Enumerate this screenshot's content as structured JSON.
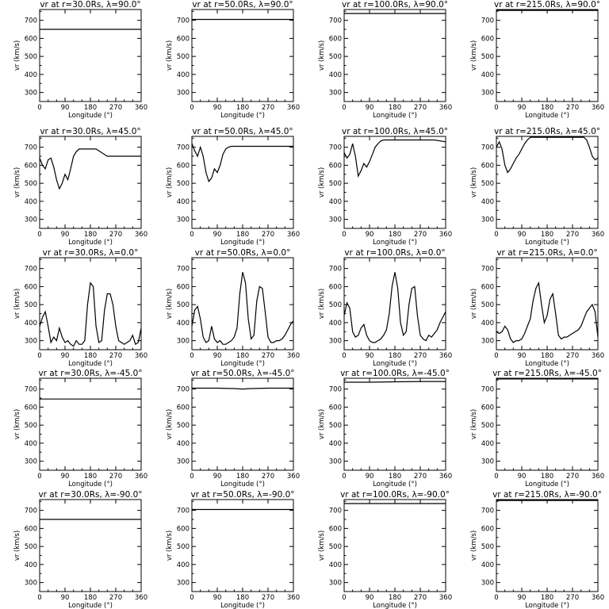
{
  "figure": {
    "xlabel": "Longitude (°)",
    "ylabel": "vr (km/s)",
    "x_ticks": [
      "0",
      "90",
      "180",
      "270",
      "360"
    ],
    "y_ticks": [
      "300",
      "400",
      "500",
      "600",
      "700"
    ]
  },
  "chart_data": [
    {
      "type": "line",
      "title": "vr at r=30.0Rs, λ=90.0°",
      "xlim": [
        0,
        360
      ],
      "ylim": [
        250,
        760
      ],
      "series": [
        {
          "x": [
            0,
            360
          ],
          "y": [
            650,
            650
          ]
        }
      ]
    },
    {
      "type": "line",
      "title": "vr at r=50.0Rs, λ=90.0°",
      "xlim": [
        0,
        360
      ],
      "ylim": [
        250,
        760
      ],
      "series": [
        {
          "x": [
            0,
            360
          ],
          "y": [
            705,
            705
          ]
        }
      ]
    },
    {
      "type": "line",
      "title": "vr at r=100.0Rs, λ=90.0°",
      "xlim": [
        0,
        360
      ],
      "ylim": [
        250,
        760
      ],
      "series": [
        {
          "x": [
            0,
            360
          ],
          "y": [
            738,
            738
          ]
        }
      ]
    },
    {
      "type": "line",
      "title": "vr at r=215.0Rs, λ=90.0°",
      "xlim": [
        0,
        360
      ],
      "ylim": [
        250,
        760
      ],
      "series": [
        {
          "x": [
            0,
            360
          ],
          "y": [
            755,
            755
          ]
        }
      ]
    },
    {
      "type": "line",
      "title": "vr at r=30.0Rs, λ=45.0°",
      "xlim": [
        0,
        360
      ],
      "ylim": [
        250,
        760
      ],
      "series": [
        {
          "x": [
            0,
            10,
            20,
            30,
            40,
            50,
            60,
            70,
            80,
            90,
            100,
            110,
            120,
            130,
            140,
            160,
            200,
            240,
            280,
            320,
            360
          ],
          "y": [
            640,
            600,
            580,
            630,
            640,
            590,
            520,
            470,
            500,
            550,
            520,
            580,
            650,
            675,
            690,
            690,
            690,
            650,
            650,
            650,
            650
          ]
        }
      ]
    },
    {
      "type": "line",
      "title": "vr at r=50.0Rs, λ=45.0°",
      "xlim": [
        0,
        360
      ],
      "ylim": [
        250,
        760
      ],
      "series": [
        {
          "x": [
            0,
            10,
            20,
            30,
            40,
            50,
            60,
            70,
            80,
            90,
            100,
            110,
            120,
            130,
            140,
            160,
            200,
            240,
            280,
            320,
            360
          ],
          "y": [
            720,
            680,
            650,
            700,
            650,
            560,
            510,
            530,
            580,
            560,
            600,
            660,
            690,
            700,
            705,
            705,
            705,
            705,
            705,
            705,
            705
          ]
        }
      ]
    },
    {
      "type": "line",
      "title": "vr at r=100.0Rs, λ=45.0°",
      "xlim": [
        0,
        360
      ],
      "ylim": [
        250,
        760
      ],
      "series": [
        {
          "x": [
            0,
            10,
            20,
            30,
            40,
            50,
            60,
            70,
            80,
            90,
            100,
            110,
            120,
            130,
            140,
            160,
            200,
            240,
            280,
            320,
            360
          ],
          "y": [
            670,
            640,
            660,
            720,
            650,
            540,
            570,
            610,
            590,
            620,
            660,
            700,
            720,
            735,
            740,
            740,
            740,
            740,
            740,
            740,
            730
          ]
        }
      ]
    },
    {
      "type": "line",
      "title": "vr at r=215.0Rs, λ=45.0°",
      "xlim": [
        0,
        360
      ],
      "ylim": [
        250,
        760
      ],
      "series": [
        {
          "x": [
            0,
            10,
            20,
            30,
            40,
            50,
            60,
            70,
            80,
            90,
            100,
            110,
            120,
            140,
            160,
            200,
            240,
            280,
            310,
            320,
            330,
            340,
            350,
            360
          ],
          "y": [
            700,
            730,
            690,
            600,
            560,
            580,
            610,
            640,
            660,
            690,
            720,
            740,
            755,
            755,
            755,
            755,
            755,
            755,
            755,
            740,
            700,
            650,
            630,
            640
          ]
        }
      ]
    },
    {
      "type": "line",
      "title": "vr at r=30.0Rs, λ=0.0°",
      "xlim": [
        0,
        360
      ],
      "ylim": [
        250,
        760
      ],
      "series": [
        {
          "x": [
            0,
            10,
            20,
            30,
            40,
            50,
            60,
            70,
            80,
            90,
            100,
            110,
            120,
            130,
            140,
            150,
            160,
            170,
            180,
            190,
            200,
            210,
            220,
            230,
            240,
            250,
            260,
            270,
            280,
            290,
            300,
            310,
            320,
            330,
            340,
            350,
            360
          ],
          "y": [
            380,
            430,
            460,
            380,
            290,
            320,
            300,
            370,
            320,
            290,
            300,
            280,
            270,
            300,
            280,
            280,
            300,
            500,
            620,
            600,
            380,
            290,
            300,
            470,
            560,
            560,
            500,
            380,
            300,
            290,
            280,
            290,
            300,
            330,
            280,
            290,
            370
          ]
        }
      ]
    },
    {
      "type": "line",
      "title": "vr at r=50.0Rs, λ=0.0°",
      "xlim": [
        0,
        360
      ],
      "ylim": [
        250,
        760
      ],
      "series": [
        {
          "x": [
            0,
            10,
            20,
            30,
            40,
            50,
            60,
            70,
            80,
            90,
            100,
            110,
            120,
            130,
            140,
            150,
            160,
            170,
            180,
            190,
            200,
            210,
            220,
            230,
            240,
            250,
            260,
            270,
            280,
            290,
            300,
            310,
            320,
            330,
            340,
            350,
            360
          ],
          "y": [
            380,
            470,
            490,
            420,
            320,
            290,
            300,
            380,
            310,
            290,
            300,
            280,
            280,
            290,
            300,
            320,
            370,
            560,
            680,
            620,
            420,
            310,
            330,
            520,
            600,
            590,
            460,
            320,
            290,
            290,
            300,
            300,
            310,
            330,
            360,
            390,
            410
          ]
        }
      ]
    },
    {
      "type": "line",
      "title": "vr at r=100.0Rs, λ=0.0°",
      "xlim": [
        0,
        360
      ],
      "ylim": [
        250,
        760
      ],
      "series": [
        {
          "x": [
            0,
            10,
            20,
            30,
            40,
            50,
            60,
            70,
            80,
            90,
            100,
            110,
            120,
            130,
            140,
            150,
            160,
            170,
            180,
            190,
            200,
            210,
            220,
            230,
            240,
            250,
            260,
            270,
            280,
            290,
            300,
            310,
            320,
            330,
            340,
            350,
            360
          ],
          "y": [
            440,
            510,
            480,
            350,
            320,
            330,
            370,
            390,
            330,
            300,
            290,
            290,
            300,
            310,
            330,
            360,
            450,
            600,
            680,
            590,
            400,
            330,
            350,
            500,
            590,
            600,
            440,
            330,
            310,
            300,
            330,
            320,
            340,
            360,
            400,
            430,
            460
          ]
        }
      ]
    },
    {
      "type": "line",
      "title": "vr at r=215.0Rs, λ=0.0°",
      "xlim": [
        0,
        360
      ],
      "ylim": [
        250,
        760
      ],
      "series": [
        {
          "x": [
            0,
            10,
            20,
            30,
            40,
            50,
            60,
            70,
            80,
            90,
            100,
            110,
            120,
            130,
            140,
            150,
            160,
            170,
            180,
            190,
            200,
            210,
            220,
            230,
            240,
            250,
            260,
            270,
            280,
            290,
            300,
            310,
            320,
            330,
            340,
            350,
            360
          ],
          "y": [
            350,
            340,
            350,
            380,
            360,
            310,
            290,
            300,
            300,
            310,
            340,
            380,
            420,
            520,
            590,
            620,
            500,
            400,
            440,
            530,
            560,
            450,
            330,
            310,
            320,
            320,
            330,
            340,
            350,
            360,
            380,
            420,
            460,
            480,
            500,
            460,
            320
          ]
        }
      ]
    },
    {
      "type": "line",
      "title": "vr at r=30.0Rs, λ=-45.0°",
      "xlim": [
        0,
        360
      ],
      "ylim": [
        250,
        760
      ],
      "series": [
        {
          "x": [
            0,
            360
          ],
          "y": [
            645,
            645
          ]
        }
      ]
    },
    {
      "type": "line",
      "title": "vr at r=50.0Rs, λ=-45.0°",
      "xlim": [
        0,
        360
      ],
      "ylim": [
        250,
        760
      ],
      "series": [
        {
          "x": [
            0,
            90,
            150,
            180,
            210,
            270,
            360
          ],
          "y": [
            705,
            705,
            703,
            700,
            703,
            705,
            705
          ]
        }
      ]
    },
    {
      "type": "line",
      "title": "vr at r=100.0Rs, λ=-45.0°",
      "xlim": [
        0,
        360
      ],
      "ylim": [
        250,
        760
      ],
      "series": [
        {
          "x": [
            0,
            90,
            180,
            270,
            360
          ],
          "y": [
            738,
            738,
            740,
            742,
            742
          ]
        }
      ]
    },
    {
      "type": "line",
      "title": "vr at r=215.0Rs, λ=-45.0°",
      "xlim": [
        0,
        360
      ],
      "ylim": [
        250,
        760
      ],
      "series": [
        {
          "x": [
            0,
            360
          ],
          "y": [
            756,
            756
          ]
        }
      ]
    },
    {
      "type": "line",
      "title": "vr at r=30.0Rs, λ=-90.0°",
      "xlim": [
        0,
        360
      ],
      "ylim": [
        250,
        760
      ],
      "series": [
        {
          "x": [
            0,
            360
          ],
          "y": [
            650,
            650
          ]
        }
      ]
    },
    {
      "type": "line",
      "title": "vr at r=50.0Rs, λ=-90.0°",
      "xlim": [
        0,
        360
      ],
      "ylim": [
        250,
        760
      ],
      "series": [
        {
          "x": [
            0,
            360
          ],
          "y": [
            705,
            705
          ]
        }
      ]
    },
    {
      "type": "line",
      "title": "vr at r=100.0Rs, λ=-90.0°",
      "xlim": [
        0,
        360
      ],
      "ylim": [
        250,
        760
      ],
      "series": [
        {
          "x": [
            0,
            360
          ],
          "y": [
            738,
            738
          ]
        }
      ]
    },
    {
      "type": "line",
      "title": "vr at r=215.0Rs, λ=-90.0°",
      "xlim": [
        0,
        360
      ],
      "ylim": [
        250,
        760
      ],
      "series": [
        {
          "x": [
            0,
            360
          ],
          "y": [
            755,
            755
          ]
        }
      ]
    }
  ]
}
